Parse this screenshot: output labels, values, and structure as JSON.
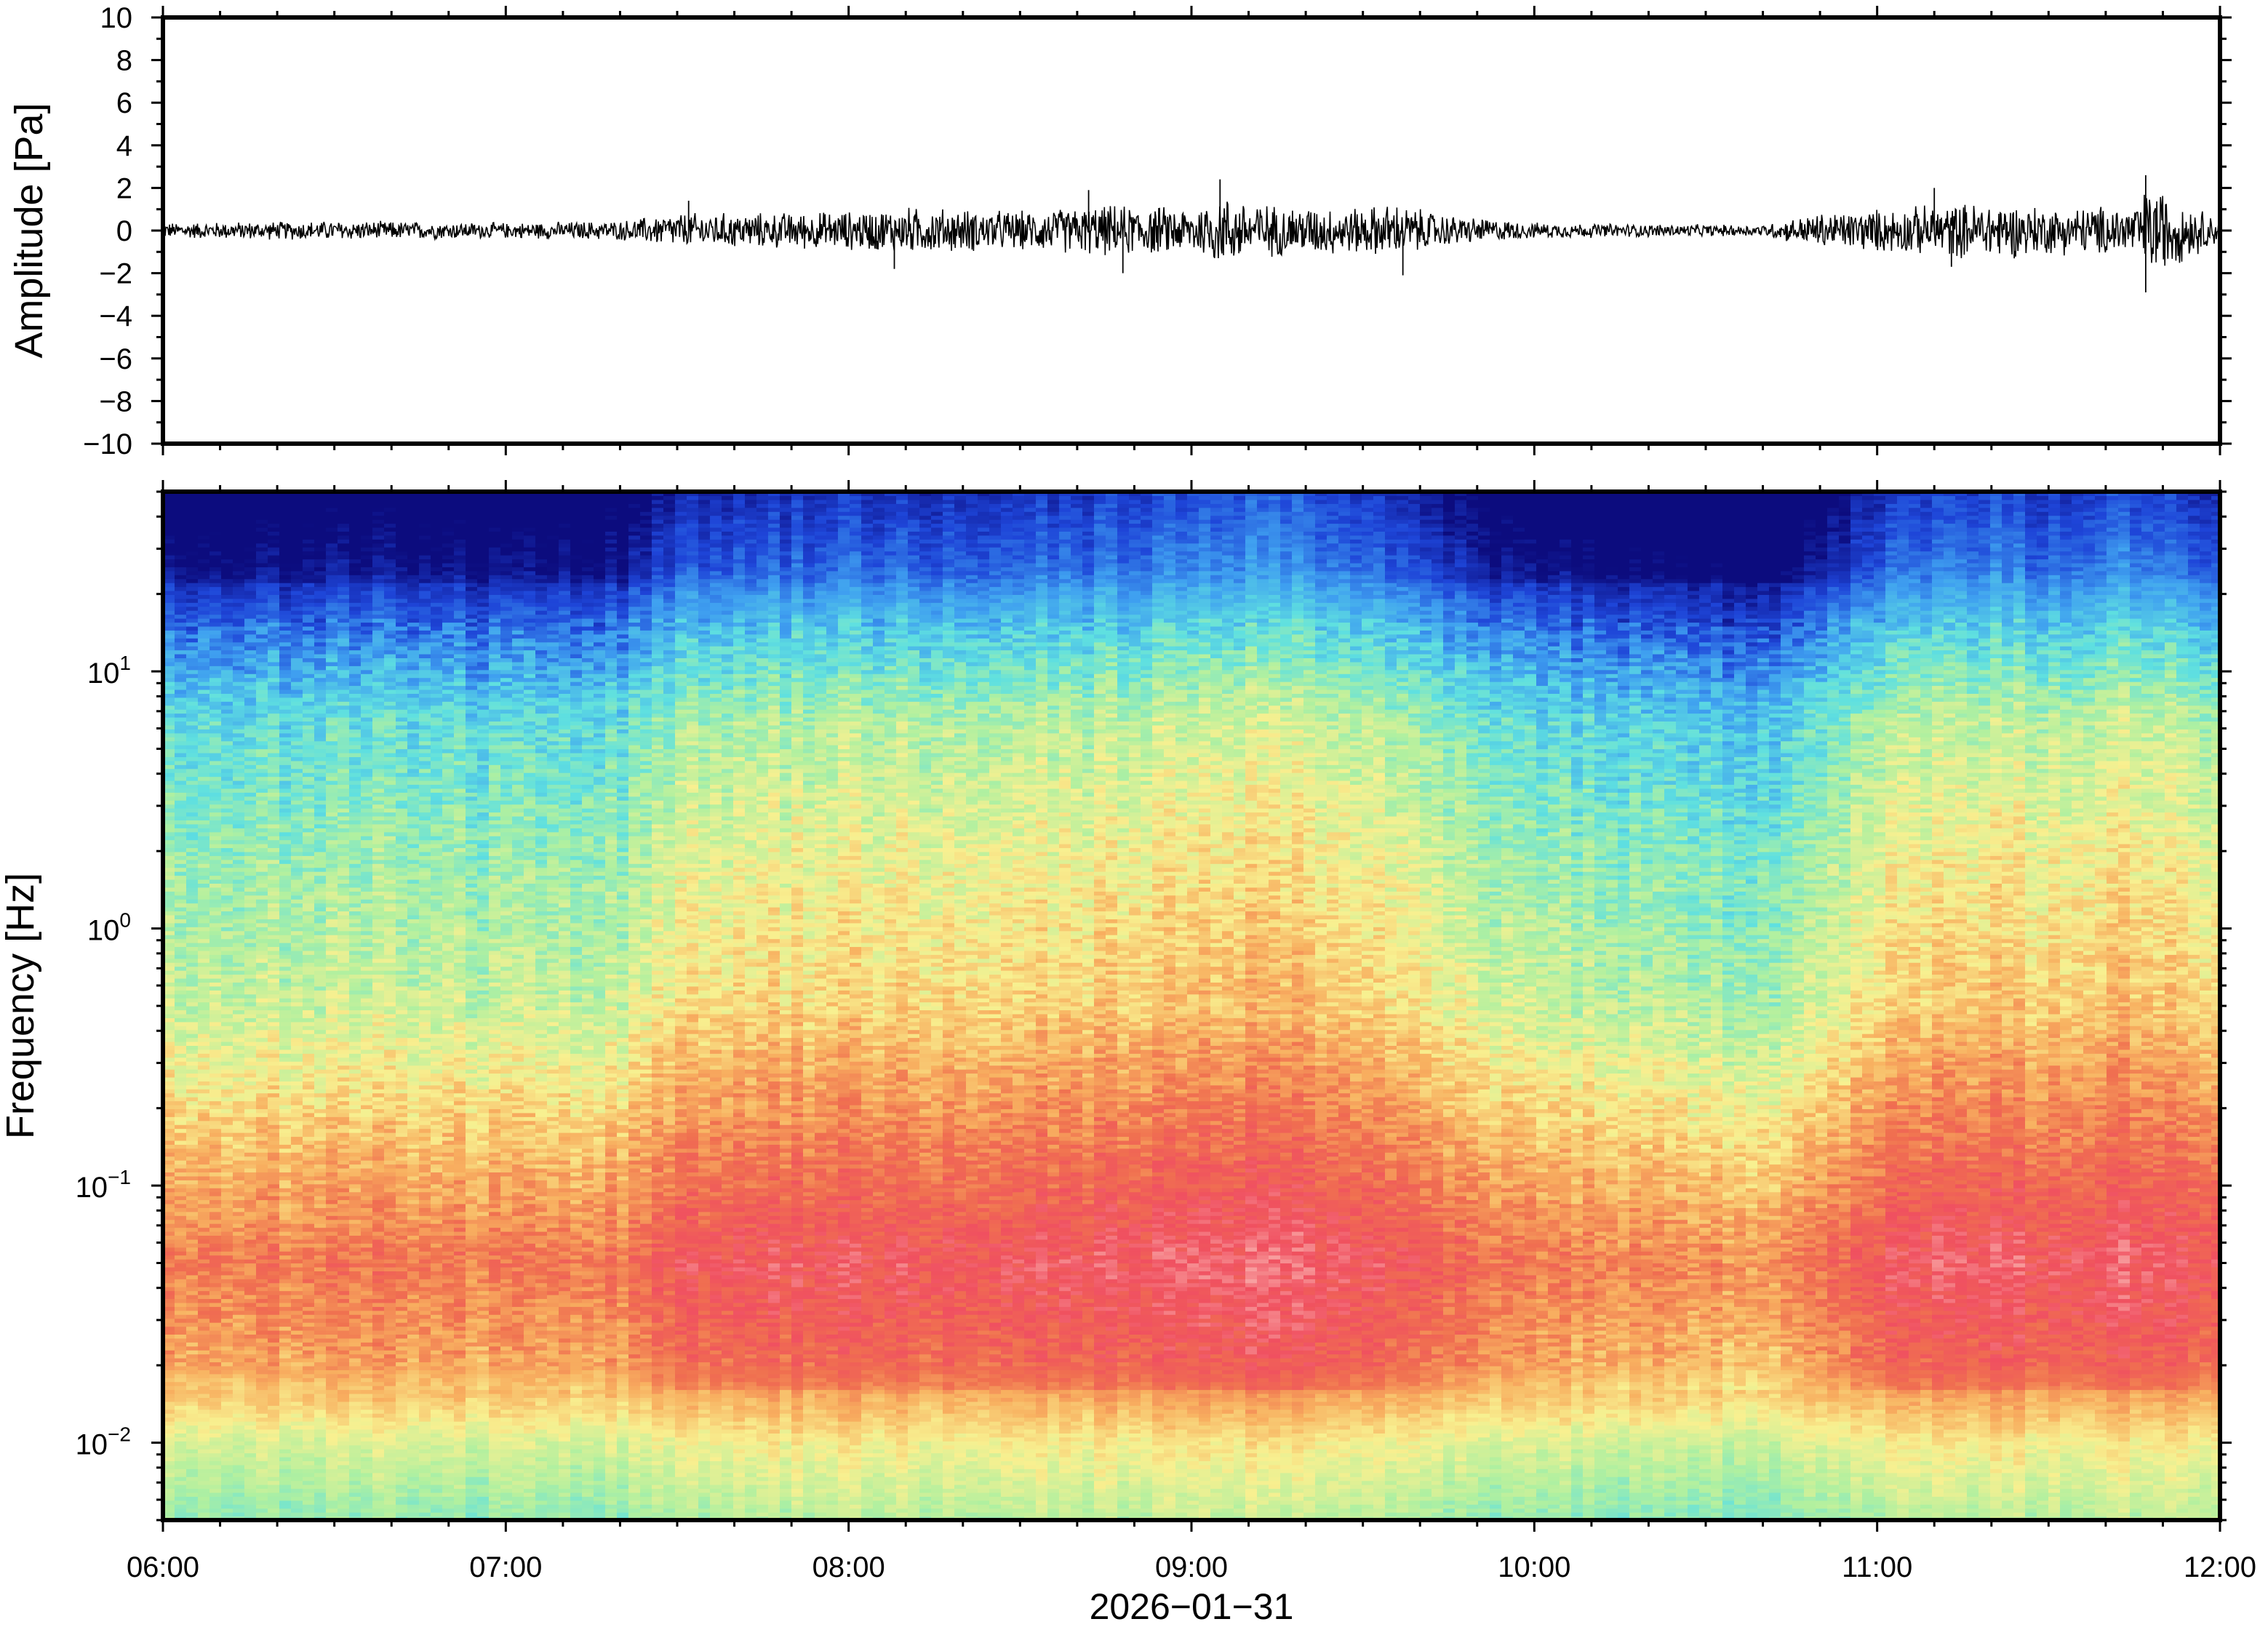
{
  "chart_data": [
    {
      "type": "line",
      "panel": "waveform",
      "ylabel": "Amplitude [Pa]",
      "ylim": [
        -10,
        10
      ],
      "yticks": [
        10,
        8,
        6,
        4,
        2,
        0,
        -2,
        -4,
        -6,
        -8,
        -10
      ],
      "ytick_labels": [
        "10",
        "8",
        "6",
        "4",
        "2",
        "0",
        "−2",
        "−4",
        "−6",
        "−8",
        "−10"
      ],
      "x_range": [
        "06:00",
        "12:00"
      ],
      "series": [
        {
          "x": [
            "06:00",
            "06:30",
            "07:00",
            "07:20",
            "07:30",
            "07:45",
            "08:00",
            "08:10",
            "08:30",
            "08:45",
            "09:00",
            "09:05",
            "09:15",
            "09:30",
            "09:35",
            "09:45",
            "10:00",
            "10:30",
            "10:40",
            "10:50",
            "11:00",
            "11:10",
            "11:20",
            "11:30",
            "11:45",
            "11:48",
            "12:00"
          ],
          "envelope": [
            0.4,
            0.5,
            0.4,
            0.5,
            0.9,
            0.9,
            1.0,
            1.2,
            1.0,
            1.3,
            1.2,
            1.8,
            1.3,
            1.2,
            1.4,
            0.8,
            0.4,
            0.3,
            0.3,
            0.9,
            1.1,
            1.3,
            1.5,
            1.2,
            1.3,
            2.4,
            0.6
          ],
          "peaks": [
            {
              "x": "07:32",
              "y": 1.4
            },
            {
              "x": "08:08",
              "y": -1.8
            },
            {
              "x": "08:42",
              "y": 1.9
            },
            {
              "x": "08:48",
              "y": -2.0
            },
            {
              "x": "09:05",
              "y": 2.4
            },
            {
              "x": "09:37",
              "y": -2.1
            },
            {
              "x": "11:10",
              "y": 2.0
            },
            {
              "x": "11:13",
              "y": -1.7
            },
            {
              "x": "11:47",
              "y": 2.6
            },
            {
              "x": "11:47",
              "y": -2.9
            }
          ]
        }
      ]
    },
    {
      "type": "heatmap",
      "panel": "spectrogram",
      "ylabel": "Frequency [Hz]",
      "y_scale": "log",
      "ylim_hz": [
        0.005,
        50
      ],
      "yticks": [
        {
          "value": 10,
          "base": "10",
          "exp": "1"
        },
        {
          "value": 1,
          "base": "10",
          "exp": "0"
        },
        {
          "value": 0.1,
          "base": "10",
          "exp": "−1"
        },
        {
          "value": 0.01,
          "base": "10",
          "exp": "−2"
        }
      ],
      "xlabel": "2026−01−31",
      "xticks": [
        "06:00",
        "07:00",
        "08:00",
        "09:00",
        "10:00",
        "11:00",
        "12:00"
      ],
      "colormap": [
        "#0c0c7e",
        "#1e45d8",
        "#3fa0f0",
        "#5fe0e0",
        "#b0f0a0",
        "#f8f090",
        "#f8b060",
        "#f07050",
        "#f05060",
        "#f8a0a0"
      ],
      "activity_over_time": {
        "times": [
          "06:00",
          "06:30",
          "07:00",
          "07:20",
          "07:30",
          "08:00",
          "08:30",
          "09:00",
          "09:15",
          "09:30",
          "09:45",
          "10:00",
          "10:20",
          "10:35",
          "10:45",
          "11:00",
          "11:15",
          "11:30",
          "11:45",
          "12:00"
        ],
        "level": [
          0.35,
          0.4,
          0.35,
          0.4,
          0.75,
          0.8,
          0.8,
          0.9,
          1.0,
          0.85,
          0.6,
          0.35,
          0.3,
          0.2,
          0.25,
          0.8,
          0.9,
          0.85,
          0.95,
          0.7
        ]
      }
    }
  ]
}
